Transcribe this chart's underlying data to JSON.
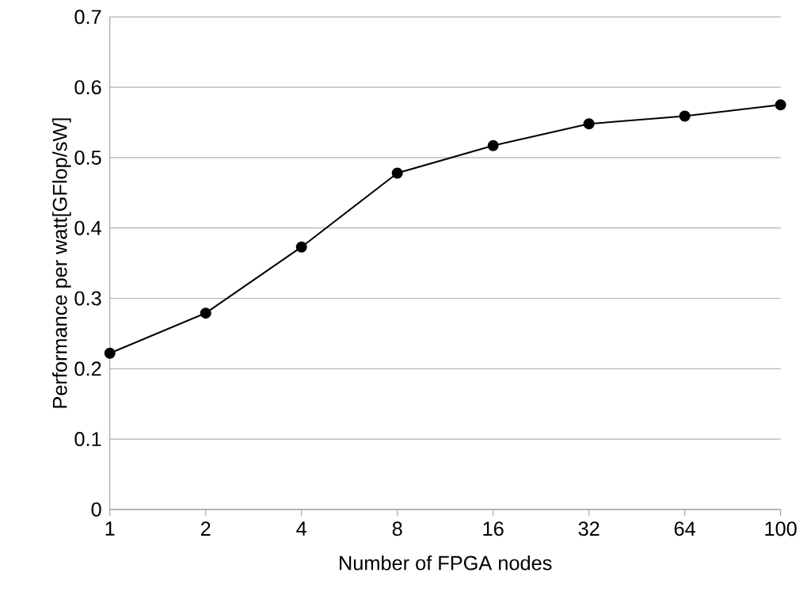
{
  "chart_data": {
    "type": "line",
    "xlabel": "Number of FPGA nodes",
    "ylabel": "Performance per watt[GFlop/sW]",
    "categories": [
      "1",
      "2",
      "4",
      "8",
      "16",
      "32",
      "64",
      "100"
    ],
    "series": [
      {
        "color": "#000000",
        "values": [
          0.222,
          0.279,
          0.373,
          0.478,
          0.517,
          0.548,
          0.559,
          0.575
        ]
      }
    ],
    "ylim": [
      0,
      0.7
    ],
    "yticks": [
      0,
      0.1,
      0.2,
      0.3,
      0.4,
      0.5,
      0.6,
      0.7
    ],
    "grid": "y",
    "marker": "circle",
    "line_style": "solid"
  }
}
